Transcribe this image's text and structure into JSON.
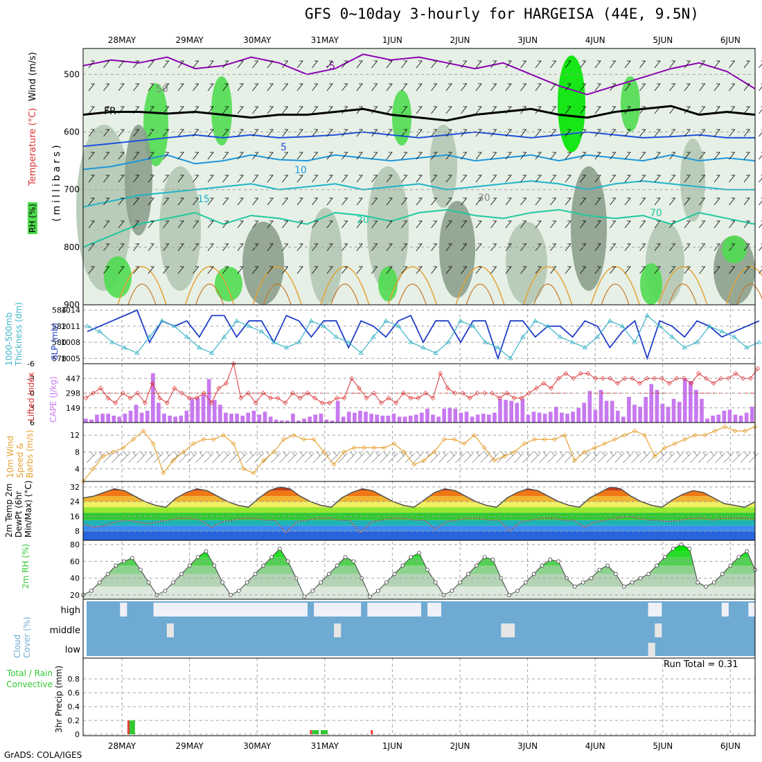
{
  "title": "GFS 0~10day 3-hourly for HARGEISA (44E, 9.5N)",
  "credit": "GrADS: COLA/IGES",
  "run_total": "Run Total = 0.31",
  "colors": {
    "rh_light": "#e6f0e6",
    "rh_mid": "#b4c8b4",
    "rh_dark": "#8ca08c",
    "rh_bright": "#50dc50",
    "rh_max": "#00e600",
    "temp_m5": "#8c00b4",
    "temp_5": "#1e50dc",
    "temp_10": "#1e96dc",
    "temp_15": "#1eb4c8",
    "temp_20": "#1ec8a0",
    "freezing": "#000000",
    "slp": "#1e3cc8",
    "thickness": "#3cb4c8",
    "lifted": "#dc3232",
    "cape": "#c878f0",
    "wind10": "#e6a032",
    "cloud": "#6eaad2",
    "cloud_clear": "#f0f0f8",
    "rain_total": "#32c832",
    "rain_conv": "#f03c3c"
  },
  "dates": [
    "28MAY",
    "29MAY",
    "30MAY",
    "31MAY",
    "1JUN",
    "2JUN",
    "3JUN",
    "4JUN",
    "5JUN",
    "6JUN"
  ],
  "chart_data": [
    {
      "type": "heatmap",
      "panel": "upper-air",
      "ylabel_parts": [
        "RH (%)",
        "Temperature (°C)",
        "Wind (m/s)"
      ],
      "ylabel2": "(millibars)",
      "y_ticks": [
        500,
        600,
        700,
        800,
        900
      ],
      "ylim": [
        455,
        900
      ],
      "contour_labels": [
        "-5",
        "FR",
        "5",
        "10",
        "15",
        "20",
        "30",
        "50",
        "70"
      ],
      "series": [
        {
          "name": "-5",
          "values": [
            485,
            475,
            480,
            470,
            490,
            485,
            470,
            480,
            500,
            490,
            465,
            475,
            470,
            480,
            490,
            480,
            500,
            520,
            535,
            520,
            505,
            490,
            480,
            495,
            525
          ]
        },
        {
          "name": "FR",
          "values": [
            570,
            565,
            565,
            568,
            565,
            570,
            575,
            570,
            570,
            565,
            560,
            570,
            575,
            580,
            570,
            565,
            560,
            570,
            575,
            565,
            560,
            555,
            570,
            565,
            570
          ]
        },
        {
          "name": "5",
          "values": [
            625,
            620,
            615,
            610,
            605,
            610,
            605,
            610,
            608,
            605,
            600,
            605,
            610,
            605,
            600,
            605,
            610,
            605,
            600,
            605,
            610,
            608,
            605,
            610,
            610
          ]
        },
        {
          "name": "10",
          "values": [
            665,
            660,
            650,
            640,
            655,
            650,
            640,
            648,
            650,
            640,
            645,
            650,
            645,
            640,
            650,
            645,
            640,
            650,
            640,
            645,
            650,
            640,
            650,
            645,
            650
          ]
        },
        {
          "name": "15",
          "values": [
            730,
            720,
            710,
            705,
            700,
            695,
            690,
            700,
            695,
            690,
            700,
            695,
            690,
            700,
            695,
            690,
            685,
            690,
            700,
            690,
            685,
            690,
            695,
            700,
            700
          ]
        },
        {
          "name": "20",
          "values": [
            800,
            780,
            760,
            750,
            740,
            760,
            745,
            750,
            760,
            740,
            745,
            755,
            740,
            735,
            745,
            750,
            740,
            735,
            745,
            750,
            745,
            760,
            740,
            750,
            760
          ]
        }
      ]
    },
    {
      "type": "line",
      "panel": "slp-thickness",
      "ylabel_left": "1000-500mb Thickness (dm)",
      "ylabel_right": "SLP (mb)",
      "left_ticks": [
        584,
        582,
        580,
        578
      ],
      "right_ticks": [
        1014,
        1011,
        1008,
        1005
      ],
      "ylim": [
        1004,
        1015
      ],
      "series": [
        {
          "name": "SLP",
          "values": [
            1010,
            1011,
            1012,
            1013,
            1014,
            1008,
            1012,
            1011,
            1012,
            1009,
            1013,
            1013,
            1009,
            1012,
            1012,
            1008,
            1013,
            1012,
            1009,
            1012,
            1012,
            1007,
            1012,
            1011,
            1009,
            1012,
            1013,
            1008,
            1012,
            1012,
            1008,
            1012,
            1012,
            1005,
            1012,
            1012,
            1009,
            1011,
            1011,
            1009,
            1012,
            1011,
            1007,
            1010,
            1012,
            1005,
            1012,
            1011,
            1009,
            1012,
            1011,
            1009,
            1010,
            1011,
            1012
          ]
        },
        {
          "name": "Thickness",
          "values": [
            1011,
            1010,
            1008,
            1007,
            1006,
            1009,
            1012,
            1011,
            1009,
            1007,
            1006,
            1009,
            1012,
            1011,
            1010,
            1008,
            1007,
            1008,
            1012,
            1011,
            1009,
            1008,
            1006,
            1009,
            1012,
            1011,
            1008,
            1007,
            1006,
            1008,
            1012,
            1011,
            1008,
            1007,
            1005,
            1009,
            1012,
            1011,
            1009,
            1008,
            1007,
            1009,
            1012,
            1011,
            1008,
            1013,
            1011,
            1009,
            1007,
            1008,
            1011,
            1010,
            1009,
            1007,
            1008
          ]
        }
      ]
    },
    {
      "type": "bar",
      "panel": "cape-li",
      "ylabel_left": "Lifted Index",
      "ylabel_right": "CAPE (J/kg)",
      "left_ticks": [
        "-6",
        "-3",
        "0",
        "3",
        "6"
      ],
      "right_ticks": [
        "447",
        "298",
        "149"
      ],
      "ylim": [
        0,
        596
      ],
      "cape_values": [
        40,
        30,
        80,
        90,
        90,
        70,
        60,
        90,
        120,
        180,
        100,
        120,
        500,
        200,
        90,
        70,
        60,
        70,
        120,
        240,
        250,
        280,
        440,
        230,
        180,
        100,
        90,
        90,
        70,
        100,
        120,
        80,
        110,
        60,
        30,
        20,
        20,
        90,
        20,
        40,
        60,
        80,
        90,
        30,
        20,
        220,
        60,
        110,
        100,
        120,
        110,
        90,
        80,
        70,
        70,
        90,
        60,
        60,
        70,
        80,
        100,
        140,
        80,
        60,
        140,
        150,
        140,
        100,
        110,
        60,
        80,
        90,
        80,
        100,
        240,
        230,
        220,
        200,
        240,
        80,
        110,
        100,
        90,
        110,
        160,
        100,
        90,
        110,
        150,
        200,
        320,
        130,
        330,
        220,
        220,
        120,
        60,
        260,
        180,
        160,
        260,
        390,
        330,
        190,
        160,
        240,
        210,
        450,
        420,
        330,
        240,
        40,
        70,
        80,
        120,
        130,
        80,
        70,
        100,
        160
      ],
      "li_values": [
        1,
        0,
        -1,
        1,
        2,
        0,
        1,
        0,
        2,
        -2,
        1,
        2,
        -1,
        0,
        1,
        1,
        0,
        2,
        -1,
        -2,
        -6,
        1,
        0,
        2,
        0,
        1,
        1,
        2,
        0,
        1,
        0,
        1,
        2,
        2,
        1,
        1,
        -3,
        -1,
        1,
        0,
        2,
        1,
        2,
        0,
        1,
        1,
        0,
        1,
        -4,
        -1,
        0,
        0,
        1,
        0,
        0,
        0,
        1,
        0,
        1,
        1,
        0,
        -1,
        -2,
        -1,
        -3,
        -4,
        -3,
        -4,
        -4,
        -3,
        -3,
        -3,
        -2,
        -3,
        -3,
        -2,
        -3,
        -3,
        -3,
        -2,
        -3,
        -3,
        -2,
        -4,
        -3,
        -2,
        -3,
        -3,
        -4,
        -3,
        -3,
        -5
      ]
    },
    {
      "type": "line",
      "panel": "wind10",
      "ylabel": "10m Wind Speed & Barbs (m/s)",
      "y_ticks": [
        12,
        8,
        4
      ],
      "ylim": [
        1,
        15
      ],
      "series": [
        {
          "name": "10m Wind Speed",
          "values": [
            1,
            4,
            7,
            8,
            9,
            11,
            13,
            10,
            3,
            6,
            8,
            10,
            11,
            11,
            12,
            10,
            4,
            3,
            6,
            8,
            11,
            12,
            11,
            11,
            8,
            5,
            8,
            9,
            9,
            9,
            9,
            10,
            8,
            5,
            6,
            8,
            11,
            11,
            10,
            12,
            9,
            6,
            7,
            8,
            10,
            11,
            11,
            11,
            12,
            6,
            8,
            9,
            10,
            11,
            12,
            13,
            12,
            7,
            9,
            10,
            11,
            12,
            12,
            13,
            14,
            13,
            13,
            14
          ]
        }
      ]
    },
    {
      "type": "area",
      "panel": "temp2m",
      "ylabel": "2m Temp 2m DewPt (6hr Min/Max) (°C)",
      "y_ticks": [
        32,
        24,
        16,
        8
      ],
      "ylim": [
        3,
        35
      ],
      "series": [
        {
          "name": "2m Temp",
          "values": [
            26,
            27,
            29,
            31,
            30,
            27,
            24,
            22,
            21,
            26,
            29,
            31,
            30,
            27,
            24,
            22,
            21,
            26,
            30,
            32,
            31,
            27,
            24,
            22,
            21,
            26,
            29,
            31,
            30,
            27,
            24,
            22,
            21,
            25,
            29,
            31,
            30,
            27,
            24,
            22,
            21,
            26,
            29,
            31,
            30,
            27,
            24,
            22,
            21,
            26,
            29,
            32,
            31,
            27,
            24,
            22,
            21,
            25,
            28,
            30,
            29,
            26,
            23,
            22,
            21,
            24
          ]
        },
        {
          "name": "2m DewPt",
          "values": [
            12,
            10,
            11,
            13,
            14,
            13,
            12,
            13,
            14,
            15,
            15,
            14,
            10,
            13,
            14,
            15,
            15,
            14,
            14,
            7,
            13,
            14,
            15,
            15,
            14,
            14,
            7,
            13,
            14,
            15,
            15,
            14,
            14,
            9,
            13,
            14,
            15,
            15,
            14,
            14,
            8,
            13,
            14,
            15,
            15,
            14,
            14,
            10,
            13,
            14,
            15,
            16,
            15,
            14,
            14,
            13,
            14,
            15,
            15,
            14,
            15,
            15,
            15,
            14
          ]
        }
      ]
    },
    {
      "type": "area",
      "panel": "rh2m",
      "ylabel": "2m RH (%)",
      "y_ticks": [
        80,
        60,
        40,
        20
      ],
      "ylim": [
        15,
        85
      ],
      "series": [
        {
          "name": "2m RH",
          "values": [
            20,
            25,
            35,
            45,
            55,
            60,
            64,
            50,
            35,
            20,
            25,
            35,
            45,
            55,
            65,
            72,
            55,
            35,
            20,
            25,
            35,
            45,
            55,
            65,
            75,
            60,
            40,
            18,
            25,
            35,
            45,
            55,
            65,
            60,
            40,
            18,
            25,
            35,
            45,
            55,
            65,
            70,
            50,
            35,
            20,
            25,
            35,
            45,
            55,
            65,
            62,
            40,
            20,
            25,
            35,
            45,
            55,
            62,
            60,
            40,
            30,
            35,
            40,
            50,
            55,
            45,
            30,
            35,
            40,
            45,
            55,
            65,
            75,
            80,
            75,
            35,
            30,
            35,
            45,
            55,
            65,
            72,
            50
          ]
        }
      ]
    },
    {
      "type": "heatmap",
      "panel": "cloud",
      "ylabel": "Cloud Cover (%)",
      "row_labels": [
        "high",
        "middle",
        "low"
      ],
      "high_clear": [
        0,
        0,
        0,
        0,
        0,
        1,
        0,
        0,
        0,
        0,
        1,
        1,
        1,
        1,
        1,
        1,
        1,
        1,
        1,
        1,
        1,
        1,
        1,
        1,
        1,
        1,
        1,
        1,
        1,
        1,
        1,
        1,
        1,
        0,
        1,
        1,
        1,
        1,
        1,
        1,
        1,
        0,
        1,
        1,
        1,
        1,
        1,
        1,
        1,
        1,
        0,
        1,
        1,
        0,
        0,
        0,
        0,
        0,
        0,
        0,
        0,
        0,
        0,
        0,
        0,
        0,
        0,
        0,
        0,
        0,
        0,
        0,
        0,
        0,
        0,
        0,
        0,
        0,
        0,
        0,
        0,
        0,
        0,
        0,
        1,
        1,
        0,
        0,
        0,
        0,
        0,
        0,
        0,
        0,
        0,
        1,
        0,
        0,
        0,
        1
      ],
      "mid_clear": [
        0,
        0,
        0,
        0,
        0,
        0,
        0,
        0,
        0,
        0,
        0,
        0,
        1,
        0,
        0,
        0,
        0,
        0,
        0,
        0,
        0,
        0,
        0,
        0,
        0,
        0,
        0,
        0,
        0,
        0,
        0,
        0,
        0,
        0,
        0,
        0,
        0,
        1,
        0,
        0,
        0,
        0,
        0,
        0,
        0,
        0,
        0,
        0,
        0,
        0,
        0,
        0,
        0,
        0,
        0,
        0,
        0,
        0,
        0,
        0,
        0,
        0,
        1,
        1,
        0,
        0,
        0,
        0,
        0,
        0,
        0,
        0,
        0,
        0,
        0,
        0,
        0,
        0,
        0,
        0,
        0,
        0,
        0,
        0,
        0,
        1,
        0,
        0,
        0,
        0,
        0,
        0,
        0,
        0,
        0,
        0,
        0,
        0,
        0,
        0
      ],
      "low_clear": [
        0,
        0,
        0,
        0,
        0,
        0,
        0,
        0,
        0,
        0,
        0,
        0,
        0,
        0,
        0,
        0,
        0,
        0,
        0,
        0,
        0,
        0,
        0,
        0,
        0,
        0,
        0,
        0,
        0,
        0,
        0,
        0,
        0,
        0,
        0,
        0,
        0,
        0,
        0,
        0,
        0,
        0,
        0,
        0,
        0,
        0,
        0,
        0,
        0,
        0,
        0,
        0,
        0,
        0,
        0,
        0,
        0,
        0,
        0,
        0,
        0,
        0,
        0,
        0,
        0,
        0,
        0,
        0,
        0,
        0,
        0,
        0,
        0,
        0,
        0,
        0,
        0,
        0,
        0,
        0,
        0,
        0,
        0,
        0,
        1,
        0,
        0,
        0,
        0,
        0,
        0,
        0,
        0,
        0,
        0,
        0,
        0,
        0,
        0,
        0
      ]
    },
    {
      "type": "bar",
      "panel": "precip",
      "ylabel_left": "Total / Rain Convective",
      "ylabel": "3hr Precip (mm)",
      "y_ticks": [
        "0.8",
        "0.6",
        "0.4",
        "0.2",
        "0"
      ],
      "ylim": [
        0,
        1
      ],
      "series": [
        {
          "name": "Total / Rain",
          "events": [
            [
              0.9,
              0.2
            ],
            [
              3.62,
              0.06
            ],
            [
              3.75,
              0.06
            ]
          ]
        },
        {
          "name": "Convective",
          "events": [
            [
              0.9,
              0.2
            ],
            [
              3.6,
              0.06
            ],
            [
              4.5,
              0.06
            ]
          ]
        }
      ]
    }
  ]
}
